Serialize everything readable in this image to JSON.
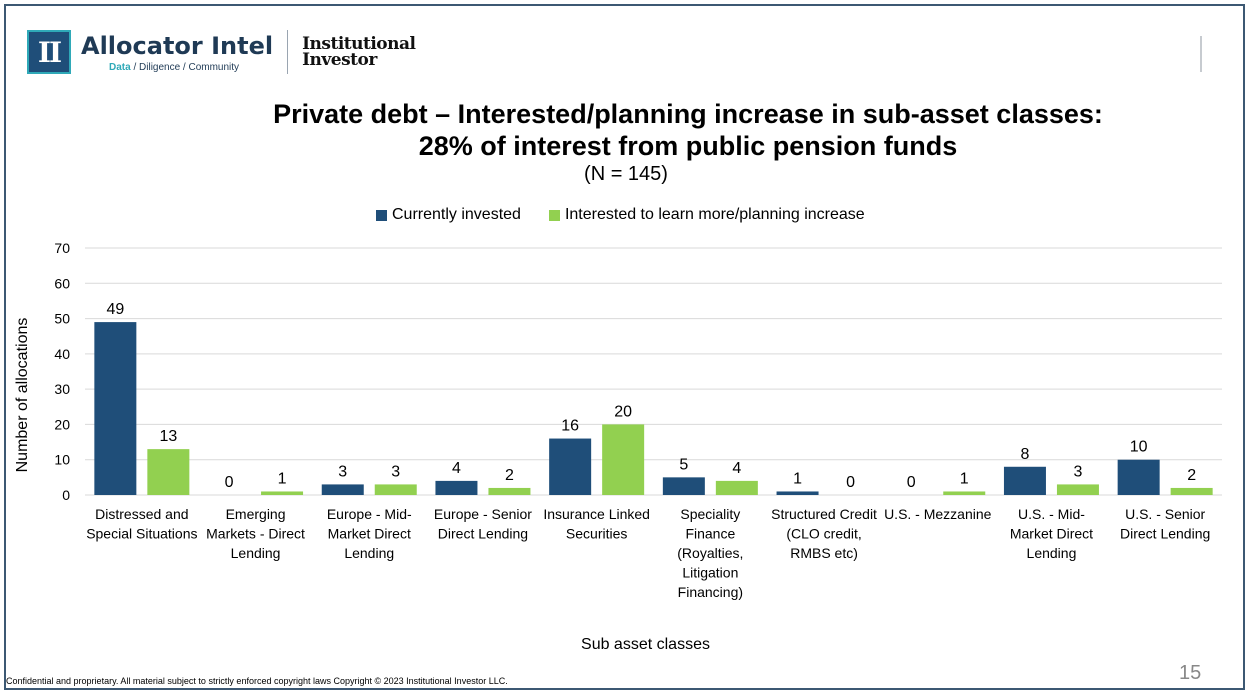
{
  "header": {
    "logo_letters": "II",
    "brand": "Allocator Intel",
    "tagline_data": "Data",
    "tagline_rest": " / Diligence / Community",
    "ii_line1": "Institutional",
    "ii_line2": "Investor"
  },
  "footer": {
    "confidential": "Confidential and proprietary. All material subject to strictly enforced copyright laws Copyright © 2023 Institutional Investor LLC.",
    "page_number": "15"
  },
  "chart_data": {
    "type": "bar",
    "title_line1": "Private debt – Interested/planning increase in sub-asset classes:",
    "title_line2": "28% of interest from public pension funds",
    "subtitle": "(N = 145)",
    "xlabel": "Sub asset classes",
    "ylabel": "Number of allocations",
    "ylim": [
      0,
      70
    ],
    "yticks": [
      0,
      10,
      20,
      30,
      40,
      50,
      60,
      70
    ],
    "grid": true,
    "legend_position": "top",
    "categories": [
      [
        "Distressed and",
        "Special Situations"
      ],
      [
        "Emerging",
        "Markets - Direct",
        "Lending"
      ],
      [
        "Europe - Mid-",
        "Market Direct",
        "Lending"
      ],
      [
        "Europe - Senior",
        "Direct Lending"
      ],
      [
        "Insurance Linked",
        "Securities"
      ],
      [
        "Speciality",
        "Finance",
        "(Royalties,",
        "Litigation",
        "Financing)"
      ],
      [
        "Structured Credit",
        "(CLO credit,",
        "RMBS etc)"
      ],
      [
        "U.S. - Mezzanine"
      ],
      [
        "U.S. - Mid-",
        "Market Direct",
        "Lending"
      ],
      [
        "U.S. - Senior",
        "Direct Lending"
      ]
    ],
    "series": [
      {
        "name": "Currently invested",
        "color": "#1f4e79",
        "values": [
          49,
          0,
          3,
          4,
          16,
          5,
          1,
          0,
          8,
          10
        ]
      },
      {
        "name": "Interested to learn more/planning increase",
        "color": "#92d050",
        "values": [
          13,
          1,
          3,
          2,
          20,
          4,
          0,
          1,
          3,
          2
        ]
      }
    ]
  }
}
